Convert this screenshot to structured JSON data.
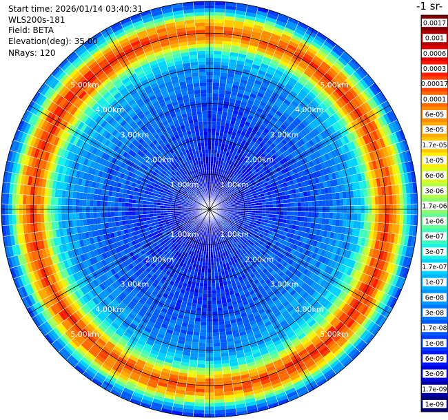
{
  "header": {
    "start_time": "Start time: 2026/01/14 03:40:31",
    "instrument": "WLS200s-181",
    "field": "Field: BETA",
    "elevation": "Elevation(deg): 35.00",
    "nrays": "NRays: 120"
  },
  "chart_data": {
    "type": "heatmap",
    "projection": "polar",
    "field": "BETA",
    "n_rays": 120,
    "elevation_deg": 35.0,
    "range_rings_km": [
      1.0,
      2.0,
      3.0,
      4.0,
      5.0
    ],
    "range_ring_labels": [
      "1.00km",
      "2.00km",
      "3.00km",
      "4.00km",
      "5.00km"
    ],
    "max_range_km": 5.9,
    "gate_spacing_km": 0.1,
    "colorbar": {
      "title": "-1 sr-",
      "scale": "log",
      "tick_labels": [
        "0.0017",
        "0.001",
        "0.0006",
        "0.0003",
        "0.00017",
        "0.0001",
        "6e-05",
        "3e-05",
        "1.7e-05",
        "1e-05",
        "6e-06",
        "3e-06",
        "1.7e-06",
        "1e-06",
        "6e-07",
        "3e-07",
        "1.7e-07",
        "1e-07",
        "6e-08",
        "3e-08",
        "1.7e-08",
        "1e-08",
        "6e-09",
        "3e-09",
        "1.7e-09",
        "1e-09"
      ],
      "colors": [
        "#7f0000",
        "#b20000",
        "#e00000",
        "#ff1a00",
        "#ff4400",
        "#ff6a00",
        "#ff8c00",
        "#ffaa00",
        "#ffc800",
        "#ffee00",
        "#dcff22",
        "#b4ff4a",
        "#8cff70",
        "#66ff96",
        "#3cffbe",
        "#18f0e6",
        "#00d2ff",
        "#00b4ff",
        "#0096ff",
        "#0078ff",
        "#005aff",
        "#003cff",
        "#0018ff",
        "#0000dc",
        "#0000aa",
        "#00007a"
      ]
    },
    "range_profile": {
      "range_km": [
        0.0,
        1.0,
        2.0,
        3.0,
        4.0,
        4.4,
        4.6,
        4.8,
        5.0,
        5.2,
        5.4,
        5.6,
        5.8
      ],
      "level_index": [
        23,
        22,
        21,
        20,
        18,
        15,
        11,
        6,
        4,
        5,
        9,
        15,
        20
      ]
    },
    "grid": true
  }
}
